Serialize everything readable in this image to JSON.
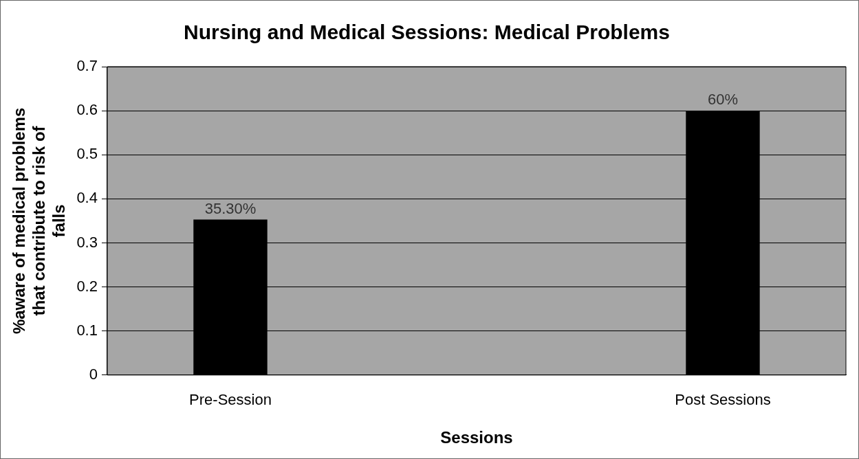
{
  "chart_data": {
    "type": "bar",
    "title": "Nursing and Medical Sessions: Medical Problems",
    "xlabel": "Sessions",
    "ylabel": "%aware of medical problems that contribute to risk of falls",
    "categories": [
      "Pre-Session",
      null,
      "Post Sessions"
    ],
    "series": [
      {
        "color": "#000000",
        "values": [
          0.353,
          null,
          0.6
        ],
        "value_labels": [
          "35.30%",
          null,
          "60%"
        ]
      }
    ],
    "ylim": [
      0,
      0.7
    ],
    "yticks": [
      0,
      0.1,
      0.2,
      0.3,
      0.4,
      0.5,
      0.6,
      0.7
    ],
    "grid": "y",
    "legend": false
  }
}
